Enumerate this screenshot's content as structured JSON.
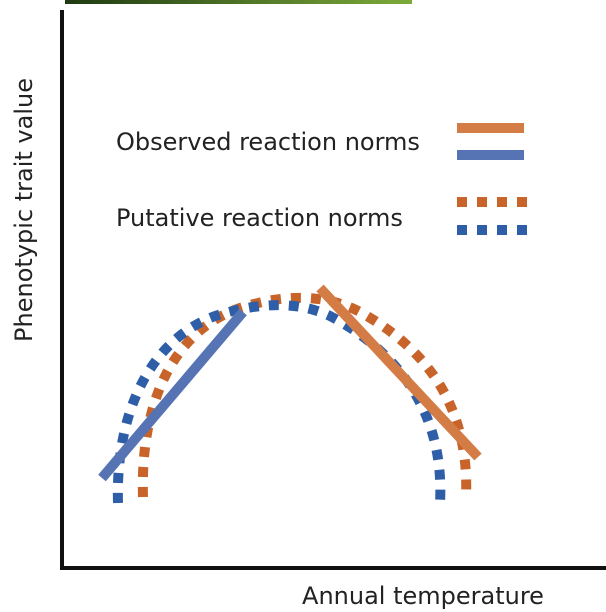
{
  "axes": {
    "y_label": "Phenotypic trait value",
    "x_label": "Annual temperature"
  },
  "legend": {
    "observed": "Observed reaction norms",
    "putative": "Putative reaction norms"
  }
}
